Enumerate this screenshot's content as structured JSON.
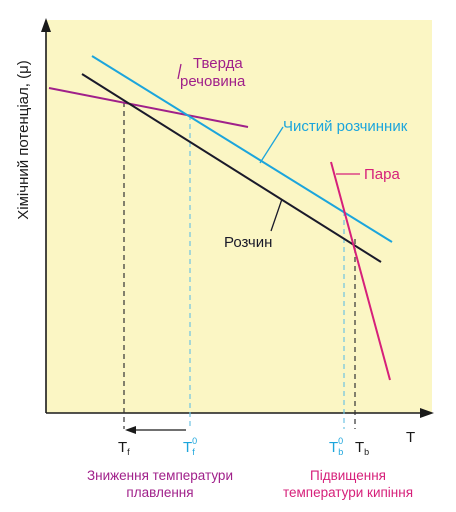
{
  "axes": {
    "y_label": "Хімічний потенціал, (μ)",
    "x_label": "T"
  },
  "curves": {
    "solid": {
      "label_line1": "Тверда",
      "label_line2": "речовина",
      "color": "#a0208a"
    },
    "pure_solvent": {
      "label": "Чистий розчинник",
      "color": "#1ca5dc"
    },
    "vapor": {
      "label": "Пара",
      "color": "#d6207a"
    },
    "solution": {
      "label": "Розчин",
      "color": "#1a1a2a"
    }
  },
  "ticks": {
    "tf": {
      "main": "T",
      "sub": "f",
      "sup": ""
    },
    "tf0": {
      "main": "T",
      "sub": "f",
      "sup": "0"
    },
    "tb0": {
      "main": "T",
      "sub": "b",
      "sup": "0"
    },
    "tb": {
      "main": "T",
      "sub": "b",
      "sup": ""
    }
  },
  "annotations": {
    "freezing_depression_line1": "Зниження температури",
    "freezing_depression_line2": "плавлення",
    "boiling_elevation_line1": "Підвищення",
    "boiling_elevation_line2": "температури кипіння"
  },
  "colors": {
    "plot_background": "#fbf6c4",
    "axis": "#1a1a1a",
    "dash_blue": "#6fc3e3",
    "dash_dark": "#333333",
    "tick_blue": "#1ca5dc",
    "annotation_purple": "#a0208a",
    "annotation_pink": "#d6207a"
  }
}
